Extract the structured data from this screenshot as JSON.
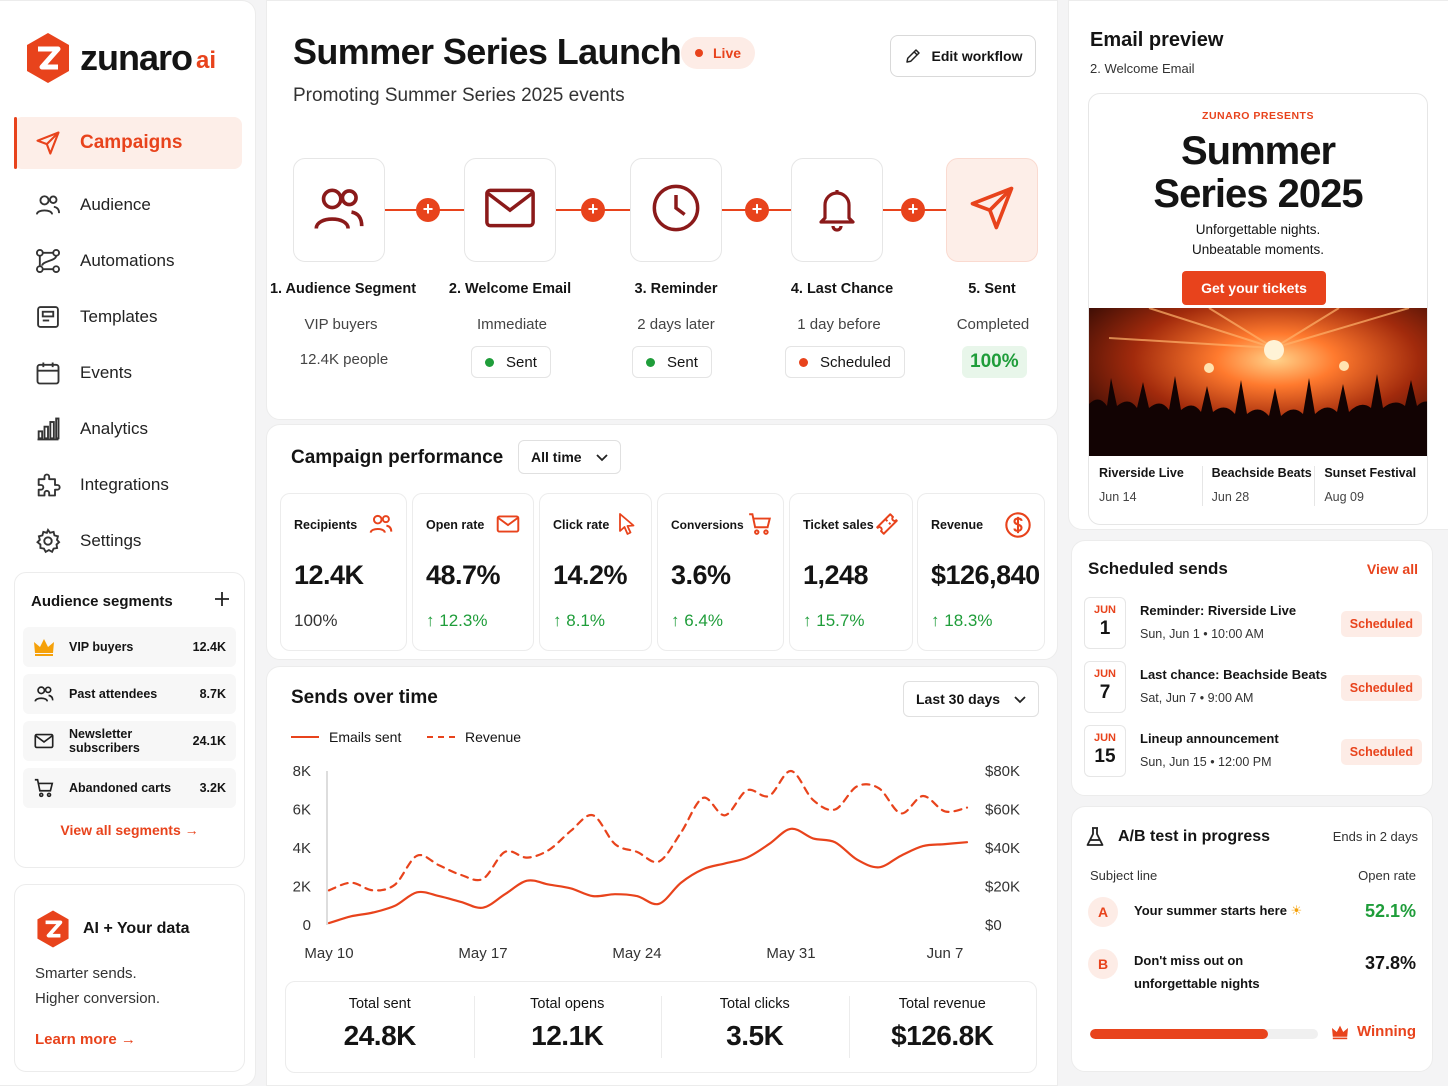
{
  "brand": {
    "name": "zunaro",
    "suffix": "ai",
    "accent": "#e8431c"
  },
  "nav": [
    {
      "label": "Campaigns",
      "icon": "send-icon",
      "active": true
    },
    {
      "label": "Audience",
      "icon": "users-icon"
    },
    {
      "label": "Automations",
      "icon": "workflow-icon"
    },
    {
      "label": "Templates",
      "icon": "template-icon"
    },
    {
      "label": "Events",
      "icon": "calendar-icon"
    },
    {
      "label": "Analytics",
      "icon": "bar-chart-icon"
    },
    {
      "label": "Integrations",
      "icon": "puzzle-icon"
    },
    {
      "label": "Settings",
      "icon": "gear-icon"
    }
  ],
  "segments": {
    "title": "Audience segments",
    "items": [
      {
        "name": "VIP buyers",
        "count": "12.4K",
        "icon": "crown-icon"
      },
      {
        "name": "Past attendees",
        "count": "8.7K",
        "icon": "users-icon"
      },
      {
        "name": "Newsletter subscribers",
        "count": "24.1K",
        "icon": "mail-icon"
      },
      {
        "name": "Abandoned carts",
        "count": "3.2K",
        "icon": "cart-icon"
      }
    ],
    "link": "View all segments"
  },
  "ai_card": {
    "title": "AI + Your data",
    "desc1": "Smarter sends.",
    "desc2": "Higher conversion.",
    "link": "Learn more"
  },
  "campaign": {
    "title": "Summer Series Launch",
    "status": "Live",
    "subtitle": "Promoting Summer Series 2025 events",
    "edit_label": "Edit workflow"
  },
  "steps": [
    {
      "label": "1. Audience Segment",
      "sub": "VIP buyers",
      "extra": "12.4K people",
      "icon": "users-icon"
    },
    {
      "label": "2. Welcome Email",
      "sub": "Immediate",
      "status": "Sent",
      "icon": "mail-icon"
    },
    {
      "label": "3. Reminder",
      "sub": "2 days later",
      "status": "Sent",
      "icon": "clock-icon"
    },
    {
      "label": "4. Last Chance",
      "sub": "1 day before",
      "status": "Scheduled",
      "icon": "bell-icon"
    },
    {
      "label": "5. Sent",
      "sub": "Completed",
      "status": "100%",
      "icon": "send-icon"
    }
  ],
  "performance": {
    "title": "Campaign performance",
    "range": "All time",
    "metrics": [
      {
        "label": "Recipients",
        "value": "12.4K",
        "delta": "100%",
        "icon": "users-icon"
      },
      {
        "label": "Open rate",
        "value": "48.7%",
        "delta": "12.3%",
        "icon": "mail-icon"
      },
      {
        "label": "Click rate",
        "value": "14.2%",
        "delta": "8.1%",
        "icon": "cursor-icon"
      },
      {
        "label": "Conversions",
        "value": "3.6%",
        "delta": "6.4%",
        "icon": "cart-icon"
      },
      {
        "label": "Ticket sales",
        "value": "1,248",
        "delta": "15.7%",
        "icon": "ticket-icon"
      },
      {
        "label": "Revenue",
        "value": "$126,840",
        "delta": "18.3%",
        "icon": "dollar-icon"
      }
    ]
  },
  "sends": {
    "title": "Sends over time",
    "range": "Last 30 days",
    "totals": [
      {
        "label": "Total sent",
        "value": "24.8K"
      },
      {
        "label": "Total opens",
        "value": "12.1K"
      },
      {
        "label": "Total clicks",
        "value": "3.5K"
      },
      {
        "label": "Total revenue",
        "value": "$126.8K"
      }
    ]
  },
  "chart_data": {
    "type": "line",
    "x": [
      "May 10",
      "May 11",
      "May 12",
      "May 13",
      "May 14",
      "May 15",
      "May 16",
      "May 17",
      "May 18",
      "May 19",
      "May 20",
      "May 21",
      "May 22",
      "May 23",
      "May 24",
      "May 25",
      "May 26",
      "May 27",
      "May 28",
      "May 29",
      "May 30",
      "May 31",
      "Jun 1",
      "Jun 2",
      "Jun 3",
      "Jun 4",
      "Jun 5",
      "Jun 6",
      "Jun 7",
      "Jun 8"
    ],
    "xticks": [
      "May 10",
      "May 17",
      "May 24",
      "May 31",
      "Jun 7"
    ],
    "series": [
      {
        "name": "Emails sent",
        "axis": "left",
        "style": "solid",
        "values": [
          100,
          450,
          650,
          1000,
          1700,
          1500,
          1200,
          900,
          1600,
          2300,
          2100,
          1900,
          1500,
          1600,
          1500,
          1100,
          2200,
          2900,
          3200,
          3500,
          4200,
          5000,
          4500,
          4300,
          3400,
          3000,
          3600,
          4100,
          4200,
          4300
        ]
      },
      {
        "name": "Revenue",
        "axis": "right",
        "style": "dashed",
        "values": [
          18000,
          22000,
          18000,
          21000,
          36000,
          31000,
          26000,
          24000,
          38000,
          35000,
          39000,
          49000,
          57000,
          42000,
          38000,
          33000,
          48000,
          66000,
          57000,
          70000,
          67000,
          80000,
          65000,
          60000,
          72000,
          71000,
          58000,
          67000,
          59000,
          61000
        ]
      }
    ],
    "ylim_left": [
      0,
      8000
    ],
    "yticks_left": [
      "8K",
      "6K",
      "4K",
      "2K",
      "0"
    ],
    "ylim_right": [
      0,
      80000
    ],
    "yticks_right": [
      "$80K",
      "$60K",
      "$40K",
      "$20K",
      "$0"
    ],
    "legend": "top-left",
    "grid": false
  },
  "preview": {
    "title": "Email preview",
    "subtitle": "2. Welcome Email",
    "pre": "ZUNARO PRESENTS",
    "headline1": "Summer",
    "headline2": "Series 2025",
    "tag1": "Unforgettable nights.",
    "tag2": "Unbeatable moments.",
    "cta": "Get your tickets",
    "events": [
      {
        "name": "Riverside Live",
        "date": "Jun 14"
      },
      {
        "name": "Beachside Beats",
        "date": "Jun 28"
      },
      {
        "name": "Sunset Festival",
        "date": "Aug 09"
      }
    ]
  },
  "scheduled": {
    "title": "Scheduled sends",
    "view_all": "View all",
    "items": [
      {
        "month": "JUN",
        "day": "1",
        "name": "Reminder: Riverside Live",
        "when": "Sun, Jun 1 • 10:00 AM",
        "status": "Scheduled"
      },
      {
        "month": "JUN",
        "day": "7",
        "name": "Last chance: Beachside Beats",
        "when": "Sat, Jun 7 • 9:00 AM",
        "status": "Scheduled"
      },
      {
        "month": "JUN",
        "day": "15",
        "name": "Lineup announcement",
        "when": "Sun, Jun 15 • 12:00 PM",
        "status": "Scheduled"
      }
    ]
  },
  "ab_test": {
    "title": "A/B test in progress",
    "ends": "Ends in 2 days",
    "col_subject": "Subject line",
    "col_rate": "Open rate",
    "a": {
      "letter": "A",
      "text": "Your summer starts here",
      "rate": "52.1%"
    },
    "b": {
      "letter": "B",
      "text1": "Don't miss out on",
      "text2": "unforgettable nights",
      "rate": "37.8%"
    },
    "winner_share": 0.78,
    "winner_label": "Winning"
  }
}
